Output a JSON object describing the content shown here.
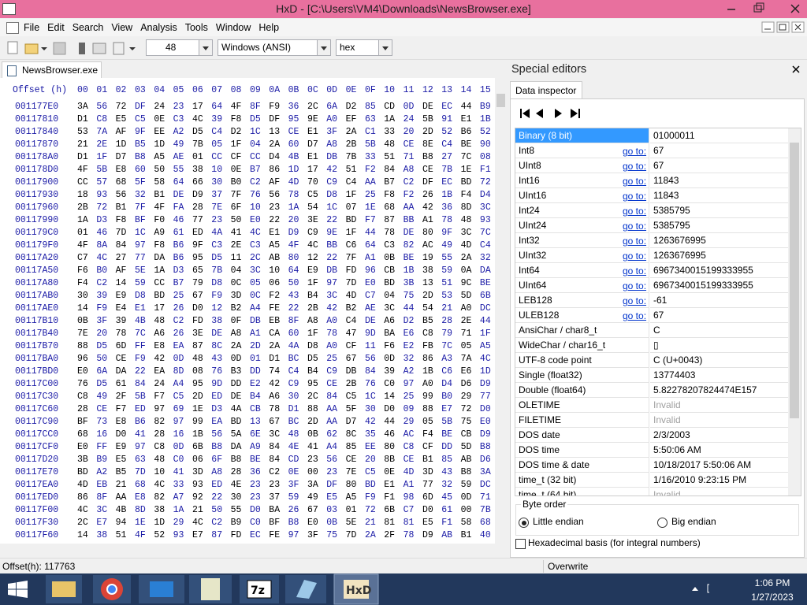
{
  "title_bar": {
    "title": "HxD - [C:\\Users\\VM4\\Downloads\\NewsBrowser.exe]"
  },
  "menu": [
    "File",
    "Edit",
    "Search",
    "View",
    "Analysis",
    "Tools",
    "Window",
    "Help"
  ],
  "toolbar": {
    "bytes_per_row": "48",
    "charset": "Windows (ANSI)",
    "display": "hex"
  },
  "tab": "NewsBrowser.exe",
  "hex_view": {
    "header_label": "Offset (h)",
    "columns": [
      "00",
      "01",
      "02",
      "03",
      "04",
      "05",
      "06",
      "07",
      "08",
      "09",
      "0A",
      "0B",
      "0C",
      "0D",
      "0E",
      "0F",
      "10",
      "11",
      "12",
      "13",
      "14",
      "15"
    ],
    "rows": [
      {
        "offset": "001177E0",
        "bytes": [
          "3A",
          "56",
          "72",
          "DF",
          "24",
          "23",
          "17",
          "64",
          "4F",
          "8F",
          "F9",
          "36",
          "2C",
          "6A",
          "D2",
          "85",
          "CD",
          "0D",
          "DE",
          "EC",
          "44",
          "B9"
        ]
      },
      {
        "offset": "00117810",
        "bytes": [
          "D1",
          "C8",
          "E5",
          "C5",
          "0E",
          "C3",
          "4C",
          "39",
          "F8",
          "D5",
          "DF",
          "95",
          "9E",
          "A0",
          "EF",
          "63",
          "1A",
          "24",
          "5B",
          "91",
          "E1",
          "1B"
        ]
      },
      {
        "offset": "00117840",
        "bytes": [
          "53",
          "7A",
          "AF",
          "9F",
          "EE",
          "A2",
          "D5",
          "C4",
          "D2",
          "1C",
          "13",
          "CE",
          "E1",
          "3F",
          "2A",
          "C1",
          "33",
          "20",
          "2D",
          "52",
          "B6",
          "52"
        ]
      },
      {
        "offset": "00117870",
        "bytes": [
          "21",
          "2E",
          "1D",
          "B5",
          "1D",
          "49",
          "7B",
          "05",
          "1F",
          "04",
          "2A",
          "60",
          "D7",
          "A8",
          "2B",
          "5B",
          "48",
          "CE",
          "8E",
          "C4",
          "BE",
          "90"
        ]
      },
      {
        "offset": "001178A0",
        "bytes": [
          "D1",
          "1F",
          "D7",
          "B8",
          "A5",
          "AE",
          "01",
          "CC",
          "CF",
          "CC",
          "D4",
          "4B",
          "E1",
          "DB",
          "7B",
          "33",
          "51",
          "71",
          "B8",
          "27",
          "7C",
          "08"
        ]
      },
      {
        "offset": "001178D0",
        "bytes": [
          "4F",
          "5B",
          "E8",
          "60",
          "50",
          "55",
          "38",
          "10",
          "0E",
          "B7",
          "86",
          "1D",
          "17",
          "42",
          "51",
          "F2",
          "84",
          "A8",
          "CE",
          "7B",
          "1E",
          "F1"
        ]
      },
      {
        "offset": "00117900",
        "bytes": [
          "CC",
          "57",
          "68",
          "5F",
          "58",
          "64",
          "66",
          "30",
          "B0",
          "C2",
          "AF",
          "4D",
          "70",
          "C9",
          "C4",
          "AA",
          "B7",
          "C2",
          "DF",
          "EC",
          "BD",
          "72"
        ]
      },
      {
        "offset": "00117930",
        "bytes": [
          "18",
          "93",
          "56",
          "32",
          "B1",
          "DE",
          "D9",
          "37",
          "7F",
          "76",
          "56",
          "78",
          "C5",
          "D8",
          "1F",
          "25",
          "F8",
          "F2",
          "26",
          "1B",
          "F4",
          "D4"
        ]
      },
      {
        "offset": "00117960",
        "bytes": [
          "2B",
          "72",
          "B1",
          "7F",
          "4F",
          "FA",
          "28",
          "7E",
          "6F",
          "10",
          "23",
          "1A",
          "54",
          "1C",
          "07",
          "1E",
          "68",
          "AA",
          "42",
          "36",
          "8D",
          "3C"
        ]
      },
      {
        "offset": "00117990",
        "bytes": [
          "1A",
          "D3",
          "F8",
          "BF",
          "F0",
          "46",
          "77",
          "23",
          "50",
          "E0",
          "22",
          "20",
          "3E",
          "22",
          "BD",
          "F7",
          "87",
          "BB",
          "A1",
          "78",
          "48",
          "93"
        ]
      },
      {
        "offset": "001179C0",
        "bytes": [
          "01",
          "46",
          "7D",
          "1C",
          "A9",
          "61",
          "ED",
          "4A",
          "41",
          "4C",
          "E1",
          "D9",
          "C9",
          "9E",
          "1F",
          "44",
          "78",
          "DE",
          "80",
          "9F",
          "3C",
          "7C"
        ]
      },
      {
        "offset": "001179F0",
        "bytes": [
          "4F",
          "8A",
          "84",
          "97",
          "F8",
          "B6",
          "9F",
          "C3",
          "2E",
          "C3",
          "A5",
          "4F",
          "4C",
          "BB",
          "C6",
          "64",
          "C3",
          "82",
          "AC",
          "49",
          "4D",
          "C4"
        ]
      },
      {
        "offset": "00117A20",
        "bytes": [
          "C7",
          "4C",
          "27",
          "77",
          "DA",
          "B6",
          "95",
          "D5",
          "11",
          "2C",
          "AB",
          "80",
          "12",
          "22",
          "7F",
          "A1",
          "0B",
          "BE",
          "19",
          "55",
          "2A",
          "32"
        ]
      },
      {
        "offset": "00117A50",
        "bytes": [
          "F6",
          "B0",
          "AF",
          "5E",
          "1A",
          "D3",
          "65",
          "7B",
          "04",
          "3C",
          "10",
          "64",
          "E9",
          "DB",
          "FD",
          "96",
          "CB",
          "1B",
          "38",
          "59",
          "0A",
          "DA"
        ]
      },
      {
        "offset": "00117A80",
        "bytes": [
          "F4",
          "C2",
          "14",
          "59",
          "CC",
          "B7",
          "79",
          "D8",
          "0C",
          "05",
          "06",
          "50",
          "1F",
          "97",
          "7D",
          "E0",
          "BD",
          "3B",
          "13",
          "51",
          "9C",
          "BE"
        ]
      },
      {
        "offset": "00117AB0",
        "bytes": [
          "30",
          "39",
          "E9",
          "D8",
          "BD",
          "25",
          "67",
          "F9",
          "3D",
          "0C",
          "F2",
          "43",
          "B4",
          "3C",
          "4D",
          "C7",
          "04",
          "75",
          "2D",
          "53",
          "5D",
          "6B"
        ]
      },
      {
        "offset": "00117AE0",
        "bytes": [
          "14",
          "F9",
          "E4",
          "E1",
          "17",
          "26",
          "D0",
          "12",
          "B2",
          "A4",
          "FE",
          "22",
          "2B",
          "42",
          "B2",
          "AE",
          "3C",
          "44",
          "54",
          "21",
          "A0",
          "DC"
        ]
      },
      {
        "offset": "00117B10",
        "bytes": [
          "0B",
          "3F",
          "39",
          "4B",
          "48",
          "C2",
          "FD",
          "38",
          "0F",
          "DB",
          "EB",
          "8F",
          "A8",
          "A0",
          "C4",
          "DE",
          "A6",
          "D2",
          "B5",
          "28",
          "2E",
          "44"
        ]
      },
      {
        "offset": "00117B40",
        "bytes": [
          "7E",
          "20",
          "78",
          "7C",
          "A6",
          "26",
          "3E",
          "DE",
          "A8",
          "A1",
          "CA",
          "60",
          "1F",
          "78",
          "47",
          "9D",
          "BA",
          "E6",
          "C8",
          "79",
          "71",
          "1F"
        ]
      },
      {
        "offset": "00117B70",
        "bytes": [
          "88",
          "D5",
          "6D",
          "FF",
          "E8",
          "EA",
          "87",
          "8C",
          "2A",
          "2D",
          "2A",
          "4A",
          "D8",
          "A0",
          "CF",
          "11",
          "F6",
          "E2",
          "FB",
          "7C",
          "05",
          "A5"
        ]
      },
      {
        "offset": "00117BA0",
        "bytes": [
          "96",
          "50",
          "CE",
          "F9",
          "42",
          "0D",
          "48",
          "43",
          "0D",
          "01",
          "D1",
          "BC",
          "D5",
          "25",
          "67",
          "56",
          "0D",
          "32",
          "86",
          "A3",
          "7A",
          "4C"
        ]
      },
      {
        "offset": "00117BD0",
        "bytes": [
          "E0",
          "6A",
          "DA",
          "22",
          "EA",
          "8D",
          "08",
          "76",
          "B3",
          "DD",
          "74",
          "C4",
          "B4",
          "C9",
          "DB",
          "84",
          "39",
          "A2",
          "1B",
          "C6",
          "E6",
          "1D"
        ]
      },
      {
        "offset": "00117C00",
        "bytes": [
          "76",
          "D5",
          "61",
          "84",
          "24",
          "A4",
          "95",
          "9D",
          "DD",
          "E2",
          "42",
          "C9",
          "95",
          "CE",
          "2B",
          "76",
          "C0",
          "97",
          "A0",
          "D4",
          "D6",
          "D9"
        ]
      },
      {
        "offset": "00117C30",
        "bytes": [
          "C8",
          "49",
          "2F",
          "5B",
          "F7",
          "C5",
          "2D",
          "ED",
          "DE",
          "B4",
          "A6",
          "30",
          "2C",
          "84",
          "C5",
          "1C",
          "14",
          "25",
          "99",
          "B0",
          "29",
          "77"
        ]
      },
      {
        "offset": "00117C60",
        "bytes": [
          "28",
          "CE",
          "F7",
          "ED",
          "97",
          "69",
          "1E",
          "D3",
          "4A",
          "CB",
          "78",
          "D1",
          "88",
          "AA",
          "5F",
          "30",
          "D0",
          "09",
          "88",
          "E7",
          "72",
          "D0"
        ]
      },
      {
        "offset": "00117C90",
        "bytes": [
          "BF",
          "73",
          "E8",
          "B6",
          "82",
          "97",
          "99",
          "EA",
          "BD",
          "13",
          "67",
          "BC",
          "2D",
          "AA",
          "D7",
          "42",
          "44",
          "29",
          "05",
          "5B",
          "75",
          "E0"
        ]
      },
      {
        "offset": "00117CC0",
        "bytes": [
          "68",
          "16",
          "D0",
          "41",
          "28",
          "16",
          "1B",
          "56",
          "5A",
          "6E",
          "3C",
          "48",
          "0B",
          "62",
          "8C",
          "35",
          "46",
          "AC",
          "F4",
          "BE",
          "CB",
          "D9"
        ]
      },
      {
        "offset": "00117CF0",
        "bytes": [
          "E0",
          "FF",
          "E9",
          "97",
          "C8",
          "0D",
          "6B",
          "B8",
          "DA",
          "A9",
          "84",
          "4E",
          "41",
          "A4",
          "85",
          "EE",
          "80",
          "C8",
          "CF",
          "DD",
          "5D",
          "B8"
        ]
      },
      {
        "offset": "00117D20",
        "bytes": [
          "3B",
          "B9",
          "E5",
          "63",
          "48",
          "C0",
          "06",
          "6F",
          "B8",
          "BE",
          "84",
          "CD",
          "23",
          "56",
          "CE",
          "20",
          "8B",
          "CE",
          "B1",
          "85",
          "AB",
          "D6"
        ]
      },
      {
        "offset": "00117E70",
        "bytes": [
          "BD",
          "A2",
          "B5",
          "7D",
          "10",
          "41",
          "3D",
          "A8",
          "28",
          "36",
          "C2",
          "0E",
          "00",
          "23",
          "7E",
          "C5",
          "0E",
          "4D",
          "3D",
          "43",
          "B8",
          "3A"
        ]
      },
      {
        "offset": "00117EA0",
        "bytes": [
          "4D",
          "EB",
          "21",
          "68",
          "4C",
          "33",
          "93",
          "ED",
          "4E",
          "23",
          "23",
          "3F",
          "3A",
          "DF",
          "80",
          "BD",
          "E1",
          "A1",
          "77",
          "32",
          "59",
          "DC"
        ]
      },
      {
        "offset": "00117ED0",
        "bytes": [
          "86",
          "8F",
          "AA",
          "E8",
          "82",
          "A7",
          "92",
          "22",
          "30",
          "23",
          "37",
          "59",
          "49",
          "E5",
          "A5",
          "F9",
          "F1",
          "98",
          "6D",
          "45",
          "0D",
          "71"
        ]
      },
      {
        "offset": "00117F00",
        "bytes": [
          "4C",
          "3C",
          "4B",
          "8D",
          "38",
          "1A",
          "21",
          "50",
          "55",
          "D0",
          "BA",
          "26",
          "67",
          "03",
          "01",
          "72",
          "6B",
          "C7",
          "D0",
          "61",
          "00",
          "7B"
        ]
      },
      {
        "offset": "00117F30",
        "bytes": [
          "2C",
          "E7",
          "94",
          "1E",
          "1D",
          "29",
          "4C",
          "C2",
          "B9",
          "C0",
          "BF",
          "B8",
          "E0",
          "0B",
          "5E",
          "21",
          "81",
          "81",
          "E5",
          "F1",
          "58",
          "68"
        ]
      },
      {
        "offset": "00117F60",
        "bytes": [
          "14",
          "38",
          "51",
          "4F",
          "52",
          "93",
          "E7",
          "87",
          "FD",
          "EC",
          "FE",
          "97",
          "3F",
          "75",
          "7D",
          "2A",
          "2F",
          "78",
          "D9",
          "AB",
          "B1",
          "40"
        ]
      }
    ]
  },
  "special_editors": {
    "title": "Special editors",
    "tab": "Data inspector",
    "selected_row": 0,
    "rows": [
      {
        "label": "Binary (8 bit)",
        "value": "01000011"
      },
      {
        "label": "Int8",
        "goto": "go to:",
        "value": "67"
      },
      {
        "label": "UInt8",
        "goto": "go to:",
        "value": "67"
      },
      {
        "label": "Int16",
        "goto": "go to:",
        "value": "11843"
      },
      {
        "label": "UInt16",
        "goto": "go to:",
        "value": "11843"
      },
      {
        "label": "Int24",
        "goto": "go to:",
        "value": "5385795"
      },
      {
        "label": "UInt24",
        "goto": "go to:",
        "value": "5385795"
      },
      {
        "label": "Int32",
        "goto": "go to:",
        "value": "1263676995"
      },
      {
        "label": "UInt32",
        "goto": "go to:",
        "value": "1263676995"
      },
      {
        "label": "Int64",
        "goto": "go to:",
        "value": "6967340015199333955"
      },
      {
        "label": "UInt64",
        "goto": "go to:",
        "value": "6967340015199333955"
      },
      {
        "label": "LEB128",
        "goto": "go to:",
        "value": "-61"
      },
      {
        "label": "ULEB128",
        "goto": "go to:",
        "value": "67"
      },
      {
        "label": "AnsiChar / char8_t",
        "value": "C"
      },
      {
        "label": "WideChar / char16_t",
        "value": "▯"
      },
      {
        "label": "UTF-8 code point",
        "value": "C (U+0043)"
      },
      {
        "label": "Single (float32)",
        "value": "13774403"
      },
      {
        "label": "Double (float64)",
        "value": "5.82278207824474E157"
      },
      {
        "label": "OLETIME",
        "value": "Invalid",
        "disabled": true
      },
      {
        "label": "FILETIME",
        "value": "Invalid",
        "disabled": true
      },
      {
        "label": "DOS date",
        "value": "2/3/2003"
      },
      {
        "label": "DOS time",
        "value": "5:50:06 AM"
      },
      {
        "label": "DOS time & date",
        "value": "10/18/2017 5:50:06 AM"
      },
      {
        "label": "time_t (32 bit)",
        "value": "1/16/2010 9:23:15 PM"
      },
      {
        "label": "time_t (64 bit)",
        "value": "Invalid",
        "disabled": true
      }
    ],
    "byte_order": {
      "title": "Byte order",
      "options": [
        "Little endian",
        "Big endian"
      ],
      "selected": 0
    },
    "hex_basis": "Hexadecimal basis (for integral numbers)"
  },
  "status_bar": {
    "offset": "Offset(h): 117763",
    "mode": "Overwrite"
  },
  "taskbar": {
    "time": "1:06 PM",
    "date": "1/27/2023"
  }
}
